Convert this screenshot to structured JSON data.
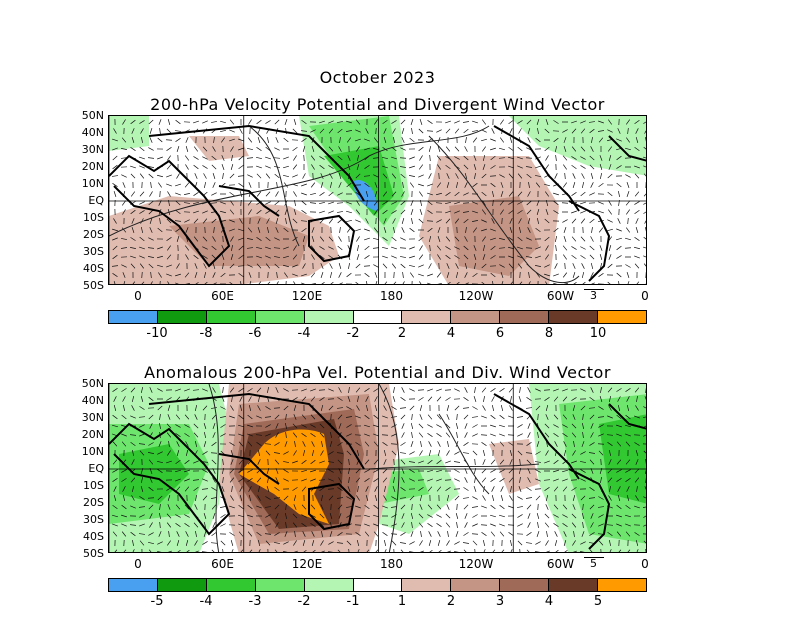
{
  "title_top": "October 2023",
  "panels": [
    {
      "title": "200-hPa Velocity Potential and Divergent Wind Vector",
      "lat_labels": [
        "50N",
        "40N",
        "30N",
        "20N",
        "10N",
        "EQ",
        "10S",
        "20S",
        "30S",
        "40S",
        "50S"
      ],
      "lon_labels": [
        "0",
        "60E",
        "120E",
        "180",
        "120W",
        "60W",
        "0"
      ],
      "ref_vector": "3",
      "colorbar": {
        "colors": [
          "#4aa0f0",
          "#0f9a0f",
          "#32c832",
          "#6ee66e",
          "#b4f5b4",
          "#ffffff",
          "#e0bcb0",
          "#c49484",
          "#a06a58",
          "#6a3a28",
          "#ff9b00"
        ],
        "labels": [
          "-10",
          "-8",
          "-6",
          "-4",
          "-2",
          "2",
          "4",
          "6",
          "8",
          "10"
        ]
      }
    },
    {
      "title": "Anomalous 200-hPa Vel. Potential and Div. Wind Vector",
      "lat_labels": [
        "50N",
        "40N",
        "30N",
        "20N",
        "10N",
        "EQ",
        "10S",
        "20S",
        "30S",
        "40S",
        "50S"
      ],
      "lon_labels": [
        "0",
        "60E",
        "120E",
        "180",
        "120W",
        "60W",
        "0"
      ],
      "ref_vector": "5",
      "colorbar": {
        "colors": [
          "#4aa0f0",
          "#0f9a0f",
          "#32c832",
          "#6ee66e",
          "#b4f5b4",
          "#ffffff",
          "#e0bcb0",
          "#c49484",
          "#a06a58",
          "#6a3a28",
          "#ff9b00"
        ],
        "labels": [
          "-5",
          "-4",
          "-3",
          "-2",
          "-1",
          "1",
          "2",
          "3",
          "4",
          "5"
        ]
      }
    }
  ]
}
